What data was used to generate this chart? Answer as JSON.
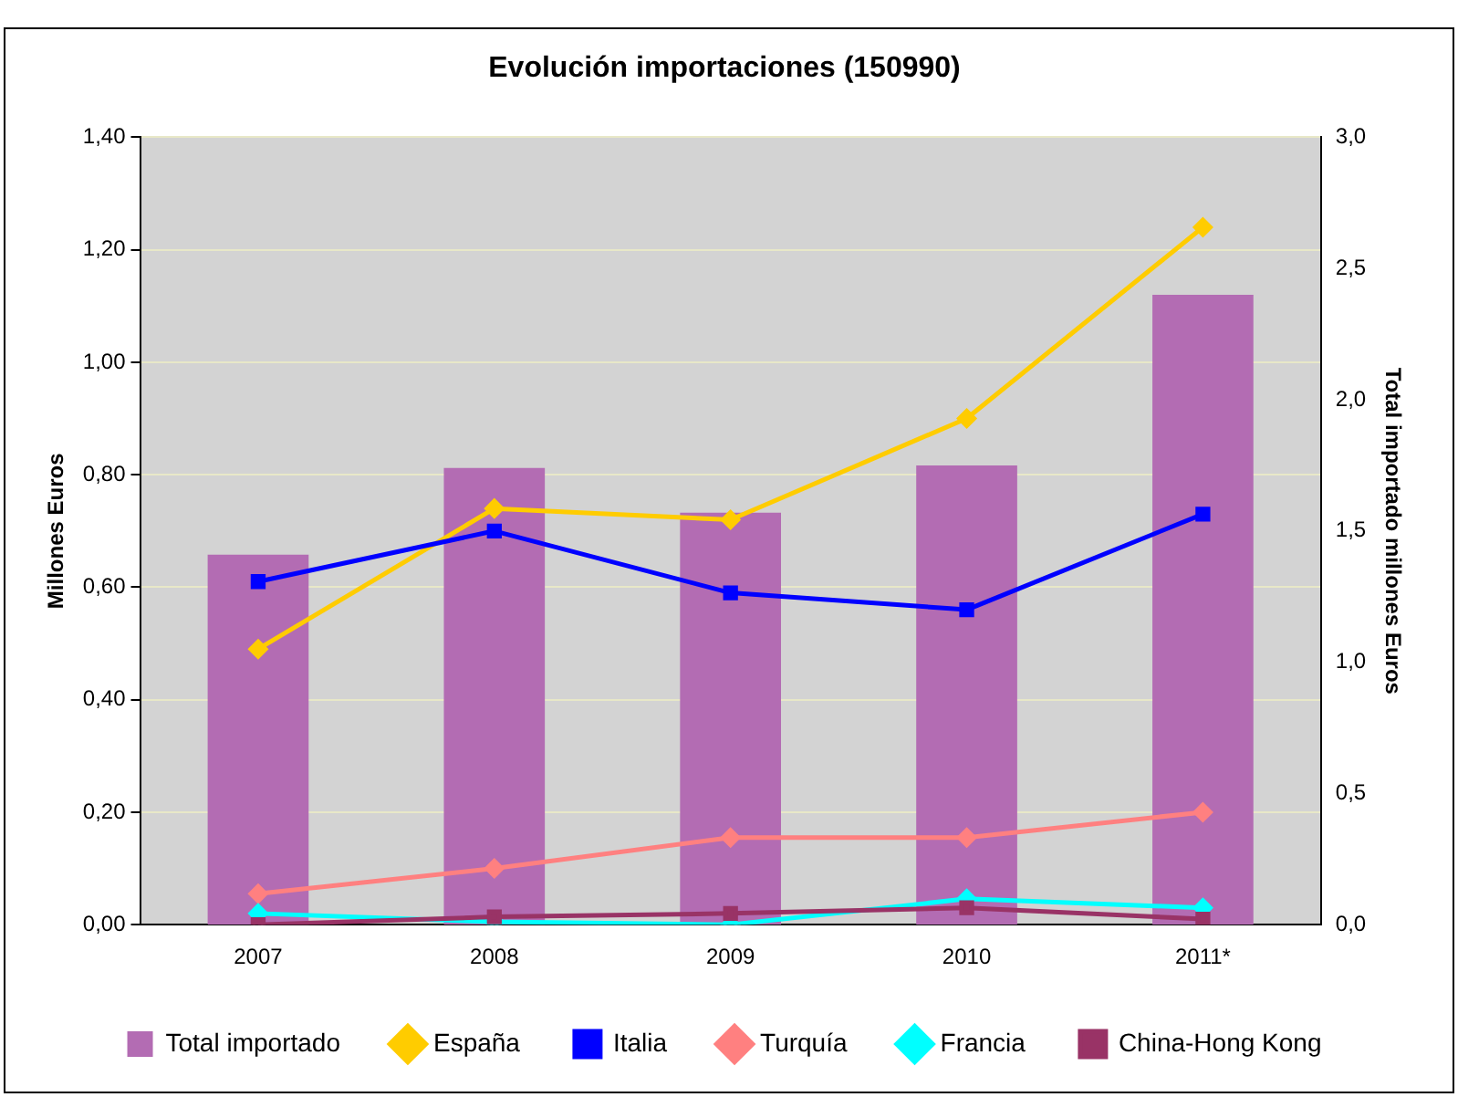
{
  "chart_data": {
    "type": "bar",
    "title": "Evolución importaciones (150990)",
    "ylabel": "Millones Euros",
    "y2label": "Total importado millones Euros",
    "categories": [
      "2007",
      "2008",
      "2009",
      "2010",
      "2011*"
    ],
    "series": [
      {
        "name": "Total importado",
        "axis": "y2",
        "color": "#b36cb3",
        "values": [
          1.41,
          1.74,
          1.57,
          1.75,
          2.4
        ]
      },
      {
        "name": "España",
        "type": "line",
        "marker": "diamond",
        "color": "#ffcc00",
        "values": [
          0.49,
          0.74,
          0.72,
          0.9,
          1.24
        ]
      },
      {
        "name": "Italia",
        "type": "line",
        "marker": "square",
        "color": "#0000ff",
        "values": [
          0.61,
          0.7,
          0.59,
          0.56,
          0.73
        ]
      },
      {
        "name": "Turquía",
        "type": "line",
        "marker": "diamond",
        "color": "#ff8080",
        "values": [
          0.055,
          0.1,
          0.155,
          0.155,
          0.2
        ]
      },
      {
        "name": "Francia",
        "type": "line",
        "marker": "diamond",
        "color": "#00ffff",
        "values": [
          0.02,
          0.005,
          0,
          0.046,
          0.03
        ]
      },
      {
        "name": "China-Hong Kong",
        "type": "line",
        "marker": "square",
        "color": "#993366",
        "values": [
          0,
          0.014,
          0.02,
          0.03,
          0.01
        ]
      }
    ],
    "ylim": [
      0,
      1.4
    ],
    "yticks": [
      {
        "value": 0,
        "label": "0,00"
      },
      {
        "value": 0.2,
        "label": "0,20"
      },
      {
        "value": 0.4,
        "label": "0,40"
      },
      {
        "value": 0.6,
        "label": "0,60"
      },
      {
        "value": 0.8,
        "label": "0,80"
      },
      {
        "value": 1,
        "label": "1,00"
      },
      {
        "value": 1.2,
        "label": "1,20"
      },
      {
        "value": 1.4,
        "label": "1,40"
      }
    ],
    "y2lim": [
      0,
      3
    ],
    "y2ticks": [
      {
        "value": 0,
        "label": "0,0"
      },
      {
        "value": 0.5,
        "label": "0,5"
      },
      {
        "value": 1,
        "label": "1,0"
      },
      {
        "value": 1.5,
        "label": "1,5"
      },
      {
        "value": 2,
        "label": "2,0"
      },
      {
        "value": 2.5,
        "label": "2,5"
      },
      {
        "value": 3,
        "label": "3,0"
      }
    ],
    "grid": "y",
    "legend": "bottom"
  }
}
